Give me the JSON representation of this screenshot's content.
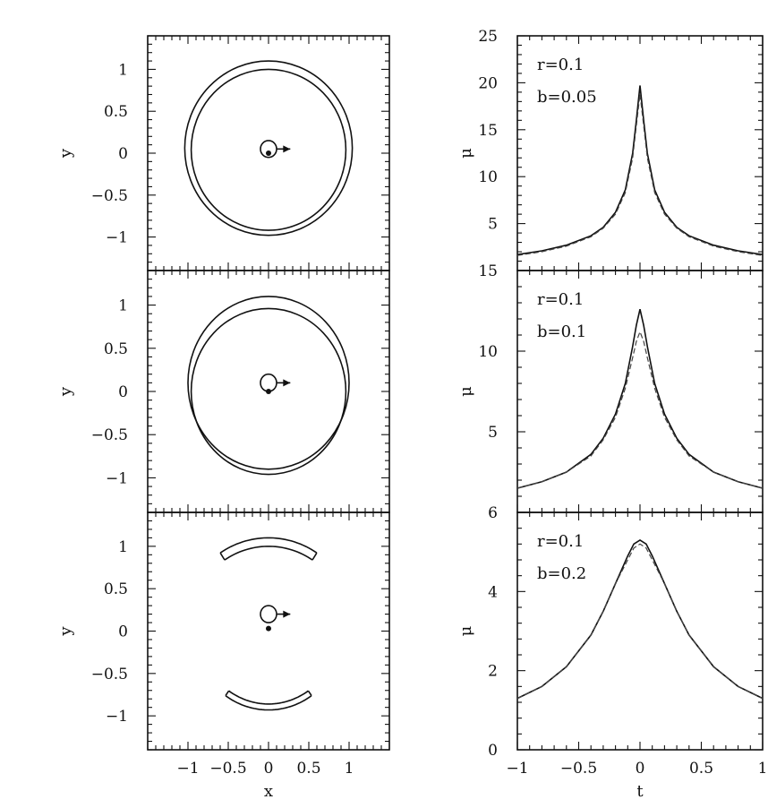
{
  "chart_data": [
    {
      "type": "line",
      "panel": "geometry-1",
      "xlabel": "",
      "ylabel": "y",
      "xlim": [
        -1.5,
        1.5
      ],
      "ylim": [
        -1.4,
        1.4
      ],
      "xticks": [
        -1,
        -0.5,
        0,
        0.5,
        1
      ],
      "xticklabels": [
        "",
        "",
        "",
        "",
        ""
      ],
      "yticks": [
        -1,
        -0.5,
        0,
        0.5,
        1
      ],
      "yticklabels": [
        "−1",
        "−0.5",
        "0",
        "0.5",
        "1"
      ],
      "rings": [
        {
          "cx": 0,
          "cy": 0.06,
          "r": 1.04
        },
        {
          "cx": 0,
          "cy": 0.04,
          "r": 0.96
        }
      ],
      "source": {
        "x": 0,
        "y": 0.05,
        "r": 0.1
      },
      "lens_point": {
        "x": 0,
        "y": 0
      },
      "arrow": {
        "from": 0.1,
        "to": 0.27,
        "y": 0.05
      }
    },
    {
      "type": "line",
      "panel": "geometry-2",
      "xlabel": "",
      "ylabel": "y",
      "xlim": [
        -1.5,
        1.5
      ],
      "ylim": [
        -1.4,
        1.4
      ],
      "xticks": [
        -1,
        -0.5,
        0,
        0.5,
        1
      ],
      "xticklabels": [
        "",
        "",
        "",
        "",
        ""
      ],
      "yticks": [
        -1,
        -0.5,
        0,
        0.5,
        1
      ],
      "yticklabels": [
        "−1",
        "−0.5",
        "0",
        "0.5",
        "1"
      ],
      "rings": [
        {
          "cx": 0,
          "cy": 0.1,
          "r": 1.0
        },
        {
          "cx": 0,
          "cy": 0.0,
          "r": 0.96
        }
      ],
      "source": {
        "x": 0,
        "y": 0.1,
        "r": 0.1
      },
      "lens_point": {
        "x": 0,
        "y": 0
      },
      "arrow": {
        "from": 0.1,
        "to": 0.27,
        "y": 0.1
      }
    },
    {
      "type": "line",
      "panel": "geometry-3",
      "xlabel": "x",
      "ylabel": "y",
      "xlim": [
        -1.5,
        1.5
      ],
      "ylim": [
        -1.4,
        1.4
      ],
      "xticks": [
        -1,
        -0.5,
        0,
        0.5,
        1
      ],
      "xticklabels": [
        "−1",
        "−0.5",
        "0",
        "0.5",
        "1"
      ],
      "yticks": [
        -1,
        -0.5,
        0,
        0.5,
        1
      ],
      "yticklabels": [
        "−1",
        "−0.5",
        "0",
        "0.5",
        "1"
      ],
      "arcs": [
        {
          "r": 1.1,
          "cy": 0,
          "theta": [
            57,
            123
          ]
        },
        {
          "r": 1.0,
          "cy": 0,
          "theta": [
            57,
            123
          ]
        },
        {
          "r": 0.86,
          "cy": 0,
          "theta": [
            -125,
            -55
          ]
        },
        {
          "r": 0.93,
          "cy": 0,
          "theta": [
            -125,
            -55
          ]
        }
      ],
      "source": {
        "x": 0,
        "y": 0.2,
        "r": 0.1
      },
      "lens_point": {
        "x": 0,
        "y": 0.03
      },
      "arrow": {
        "from": 0.1,
        "to": 0.27,
        "y": 0.2
      }
    },
    {
      "type": "line",
      "panel": "lightcurve-1",
      "xlabel": "",
      "ylabel": "μ",
      "xlim": [
        -1,
        1
      ],
      "ylim": [
        0,
        25
      ],
      "xticks": [
        -1,
        -0.5,
        0,
        0.5,
        1
      ],
      "xticklabels": [
        "",
        "",
        "",
        "",
        ""
      ],
      "yticks": [
        5,
        10,
        15,
        20,
        25
      ],
      "yticklabels": [
        "5",
        "10",
        "15",
        "20",
        "25"
      ],
      "annotation": [
        "r=0.1",
        "b=0.05"
      ],
      "series": [
        {
          "name": "",
          "x": [
            -1,
            -0.8,
            -0.6,
            -0.4,
            -0.3,
            -0.2,
            -0.12,
            -0.06,
            -0.03,
            0,
            0.03,
            0.06,
            0.12,
            0.2,
            0.3,
            0.4,
            0.6,
            0.8,
            1
          ],
          "y": [
            1.7,
            2.1,
            2.7,
            3.7,
            4.6,
            6.2,
            8.6,
            12.5,
            16.0,
            19.7,
            16.0,
            12.5,
            8.6,
            6.2,
            4.6,
            3.7,
            2.7,
            2.1,
            1.7
          ]
        },
        {
          "name": "",
          "x": [
            -1,
            -0.8,
            -0.6,
            -0.4,
            -0.3,
            -0.2,
            -0.12,
            -0.06,
            -0.03,
            0,
            0.03,
            0.06,
            0.12,
            0.2,
            0.3,
            0.4,
            0.6,
            0.8,
            1
          ],
          "y": [
            1.6,
            2.0,
            2.6,
            3.6,
            4.5,
            6.0,
            8.3,
            12.0,
            15.4,
            18.8,
            15.4,
            12.0,
            8.3,
            6.0,
            4.5,
            3.6,
            2.6,
            2.0,
            1.6
          ]
        }
      ]
    },
    {
      "type": "line",
      "panel": "lightcurve-2",
      "xlabel": "",
      "ylabel": "μ",
      "xlim": [
        -1,
        1
      ],
      "ylim": [
        0,
        15
      ],
      "xticks": [
        -1,
        -0.5,
        0,
        0.5,
        1
      ],
      "xticklabels": [
        "",
        "",
        "",
        "",
        ""
      ],
      "yticks": [
        5,
        10,
        15
      ],
      "yticklabels": [
        "5",
        "10",
        "15"
      ],
      "annotation": [
        "r=0.1",
        "b=0.1"
      ],
      "series": [
        {
          "name": "",
          "x": [
            -1,
            -0.8,
            -0.6,
            -0.4,
            -0.3,
            -0.2,
            -0.12,
            -0.06,
            -0.03,
            0,
            0.03,
            0.06,
            0.12,
            0.2,
            0.3,
            0.4,
            0.6,
            0.8,
            1
          ],
          "y": [
            1.5,
            1.9,
            2.5,
            3.6,
            4.6,
            6.1,
            8.0,
            10.3,
            11.6,
            12.6,
            11.6,
            10.3,
            8.0,
            6.1,
            4.6,
            3.6,
            2.5,
            1.9,
            1.5
          ]
        },
        {
          "name": "",
          "x": [
            -1,
            -0.8,
            -0.6,
            -0.4,
            -0.3,
            -0.2,
            -0.12,
            -0.06,
            -0.03,
            0,
            0.03,
            0.06,
            0.12,
            0.2,
            0.3,
            0.4,
            0.6,
            0.8,
            1
          ],
          "y": [
            1.5,
            1.9,
            2.5,
            3.5,
            4.5,
            5.9,
            7.7,
            9.6,
            10.6,
            11.2,
            10.6,
            9.6,
            7.7,
            5.9,
            4.5,
            3.5,
            2.5,
            1.9,
            1.5
          ]
        }
      ]
    },
    {
      "type": "line",
      "panel": "lightcurve-3",
      "xlabel": "t",
      "ylabel": "μ",
      "xlim": [
        -1,
        1
      ],
      "ylim": [
        0,
        6
      ],
      "xticks": [
        -1,
        -0.5,
        0,
        0.5,
        1
      ],
      "xticklabels": [
        "−1",
        "−0.5",
        "0",
        "0.5",
        "1"
      ],
      "yticks": [
        0,
        2,
        4,
        6
      ],
      "yticklabels": [
        "0",
        "2",
        "4",
        "6"
      ],
      "annotation": [
        "r=0.1",
        "b=0.2"
      ],
      "series": [
        {
          "name": "",
          "x": [
            -1,
            -0.8,
            -0.6,
            -0.4,
            -0.3,
            -0.2,
            -0.1,
            -0.05,
            0,
            0.05,
            0.1,
            0.2,
            0.3,
            0.4,
            0.6,
            0.8,
            1
          ],
          "y": [
            1.3,
            1.6,
            2.1,
            2.9,
            3.5,
            4.2,
            4.9,
            5.2,
            5.3,
            5.2,
            4.9,
            4.2,
            3.5,
            2.9,
            2.1,
            1.6,
            1.3
          ]
        },
        {
          "name": "",
          "x": [
            -1,
            -0.8,
            -0.6,
            -0.4,
            -0.3,
            -0.2,
            -0.1,
            -0.05,
            0,
            0.05,
            0.1,
            0.2,
            0.3,
            0.4,
            0.6,
            0.8,
            1
          ],
          "y": [
            1.3,
            1.6,
            2.1,
            2.9,
            3.5,
            4.2,
            4.8,
            5.1,
            5.2,
            5.1,
            4.8,
            4.2,
            3.5,
            2.9,
            2.1,
            1.6,
            1.3
          ]
        }
      ]
    }
  ]
}
